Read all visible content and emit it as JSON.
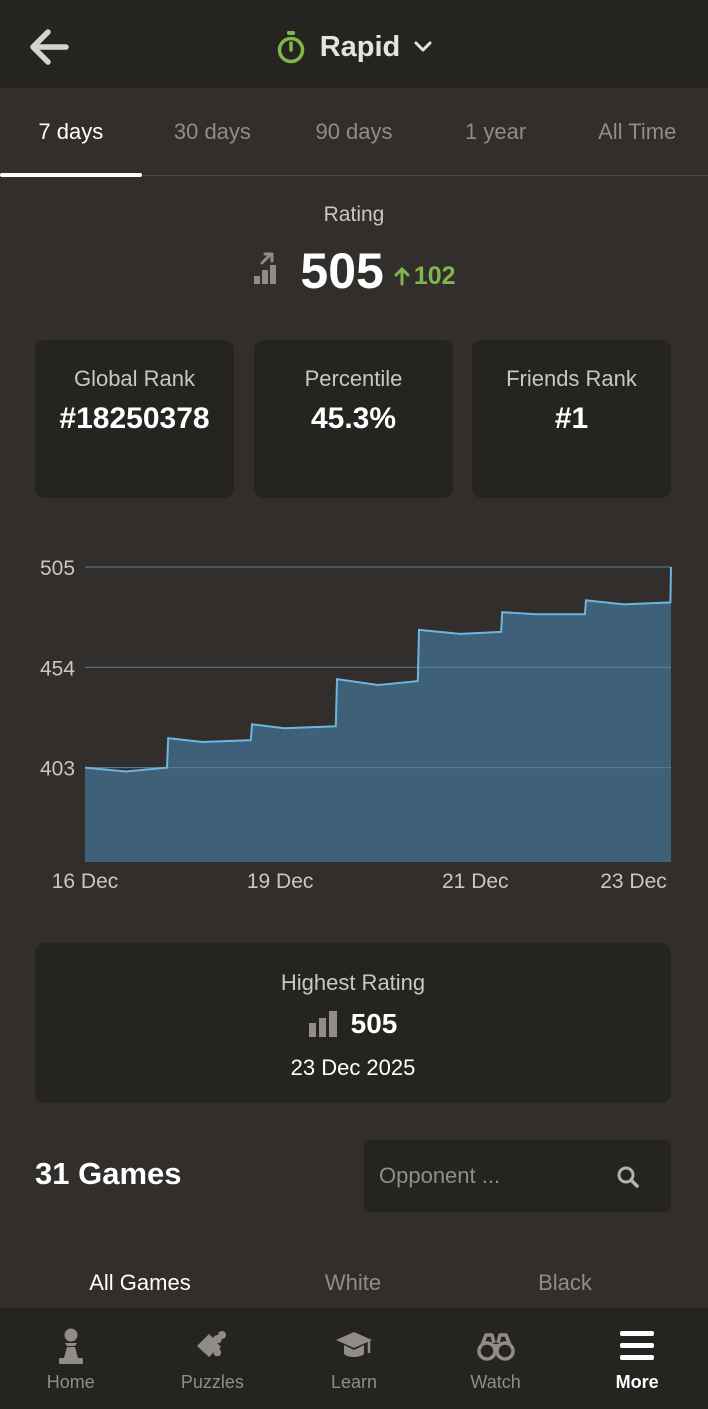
{
  "header": {
    "title": "Rapid",
    "back_icon": "arrow-left-icon",
    "mode_icon": "stopwatch-icon",
    "dropdown_icon": "chevron-down-icon"
  },
  "time_tabs": [
    {
      "label": "7 days",
      "active": true
    },
    {
      "label": "30 days",
      "active": false
    },
    {
      "label": "90 days",
      "active": false
    },
    {
      "label": "1 year",
      "active": false
    },
    {
      "label": "All Time",
      "active": false
    }
  ],
  "rating": {
    "label": "Rating",
    "value": "505",
    "change": "102"
  },
  "stats": [
    {
      "label": "Global Rank",
      "value": "#18250378"
    },
    {
      "label": "Percentile",
      "value": "45.3%"
    },
    {
      "label": "Friends Rank",
      "value": "#1"
    }
  ],
  "chart_data": {
    "type": "area",
    "y_ticks": [
      "505",
      "454",
      "403"
    ],
    "x_ticks": [
      "16 Dec",
      "19 Dec",
      "21 Dec",
      "23 Dec"
    ],
    "ylim": [
      355,
      505
    ],
    "grid": true,
    "points": [
      [
        0.0,
        403
      ],
      [
        0.07,
        401
      ],
      [
        0.14,
        403
      ],
      [
        0.142,
        418
      ],
      [
        0.2,
        416
      ],
      [
        0.283,
        417
      ],
      [
        0.285,
        425
      ],
      [
        0.34,
        423
      ],
      [
        0.428,
        424
      ],
      [
        0.43,
        448
      ],
      [
        0.5,
        445
      ],
      [
        0.568,
        447
      ],
      [
        0.57,
        473
      ],
      [
        0.64,
        471
      ],
      [
        0.71,
        472
      ],
      [
        0.712,
        482
      ],
      [
        0.77,
        481
      ],
      [
        0.853,
        481
      ],
      [
        0.855,
        488
      ],
      [
        0.92,
        486
      ],
      [
        0.999,
        487
      ],
      [
        1.0,
        505
      ]
    ],
    "fill_color": "#3e6179",
    "line_color": "#6eb4e0"
  },
  "highest": {
    "label": "Highest Rating",
    "value": "505",
    "date": "23 Dec 2025"
  },
  "games": {
    "count_label": "31 Games",
    "search_placeholder": "Opponent ...",
    "filters": [
      {
        "label": "All Games",
        "active": true
      },
      {
        "label": "White",
        "active": false
      },
      {
        "label": "Black",
        "active": false
      }
    ]
  },
  "nav": [
    {
      "label": "Home",
      "icon": "pawn-icon",
      "active": false
    },
    {
      "label": "Puzzles",
      "icon": "puzzle-icon",
      "active": false
    },
    {
      "label": "Learn",
      "icon": "graduation-cap-icon",
      "active": false
    },
    {
      "label": "Watch",
      "icon": "binoculars-icon",
      "active": false
    },
    {
      "label": "More",
      "icon": "menu-icon",
      "active": true
    }
  ],
  "colors": {
    "background": "#312e2b",
    "card": "#262421",
    "accent_green": "#81b64c",
    "chart_fill": "#3e6179",
    "chart_line": "#6eb4e0"
  }
}
